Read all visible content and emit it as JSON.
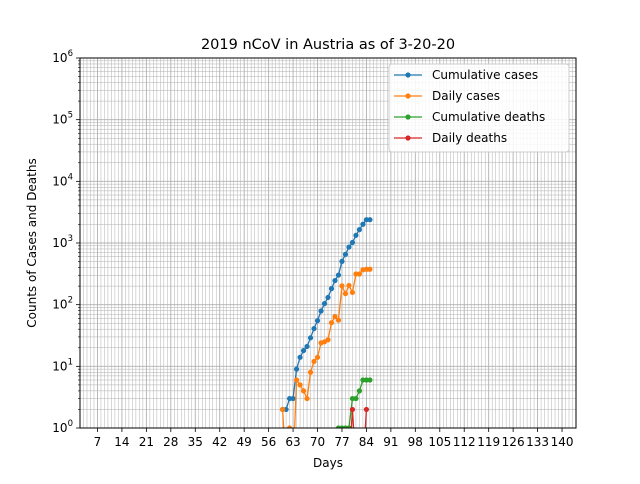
{
  "chart_data": {
    "type": "line",
    "title": "2019 nCoV in Austria as of 3-20-20",
    "xlabel": "Days",
    "ylabel": "Counts of Cases and Deaths",
    "xlim": [
      2,
      144
    ],
    "ylim": [
      1,
      1000000
    ],
    "yscale": "log",
    "grid": true,
    "legend_position": "top-right",
    "x_ticks": [
      7,
      14,
      21,
      28,
      35,
      42,
      49,
      56,
      63,
      70,
      77,
      84,
      91,
      98,
      105,
      112,
      119,
      126,
      133,
      140
    ],
    "x_tick_labels": [
      "7",
      "14",
      "21",
      "28",
      "35",
      "42",
      "49",
      "56",
      "63",
      "70",
      "77",
      "84",
      "91",
      "98",
      "105",
      "112",
      "119",
      "126",
      "133",
      "140"
    ],
    "y_ticks": [
      1,
      10,
      100,
      1000,
      10000,
      100000,
      1000000
    ],
    "y_tick_labels": [
      {
        "base": "10",
        "exp": "0"
      },
      {
        "base": "10",
        "exp": "1"
      },
      {
        "base": "10",
        "exp": "2"
      },
      {
        "base": "10",
        "exp": "3"
      },
      {
        "base": "10",
        "exp": "4"
      },
      {
        "base": "10",
        "exp": "5"
      },
      {
        "base": "10",
        "exp": "6"
      }
    ],
    "series": [
      {
        "name": "Cumulative cases",
        "color": "#1f77b4",
        "x": [
          60,
          61,
          62,
          63,
          64,
          65,
          66,
          67,
          68,
          69,
          70,
          71,
          72,
          73,
          74,
          75,
          76,
          77,
          78,
          79,
          80,
          81,
          82,
          83,
          84,
          85
        ],
        "y": [
          2,
          2,
          3,
          3,
          9,
          14,
          18,
          21,
          29,
          41,
          55,
          79,
          104,
          131,
          182,
          246,
          302,
          504,
          655,
          860,
          1018,
          1332,
          1646,
          2013,
          2388,
          2388
        ]
      },
      {
        "name": "Daily cases",
        "color": "#ff7f0e",
        "x": [
          60,
          61,
          62,
          63,
          64,
          65,
          66,
          67,
          68,
          69,
          70,
          71,
          72,
          73,
          74,
          75,
          76,
          77,
          78,
          79,
          80,
          81,
          82,
          83,
          84,
          85
        ],
        "y": [
          2,
          0,
          1,
          0,
          6,
          5,
          4,
          3,
          8,
          12,
          14,
          24,
          25,
          27,
          51,
          64,
          56,
          202,
          151,
          205,
          158,
          314,
          314,
          367,
          375,
          375
        ]
      },
      {
        "name": "Cumulative deaths",
        "color": "#2ca02c",
        "x": [
          76,
          77,
          78,
          79,
          80,
          81,
          82,
          83,
          84,
          85
        ],
        "y": [
          1,
          1,
          1,
          1,
          3,
          3,
          4,
          6,
          6,
          6
        ]
      },
      {
        "name": "Daily deaths",
        "color": "#d62728",
        "x": [
          79,
          80,
          81,
          82,
          83,
          84
        ],
        "y": [
          0,
          2,
          0,
          0,
          0,
          2
        ]
      }
    ]
  }
}
